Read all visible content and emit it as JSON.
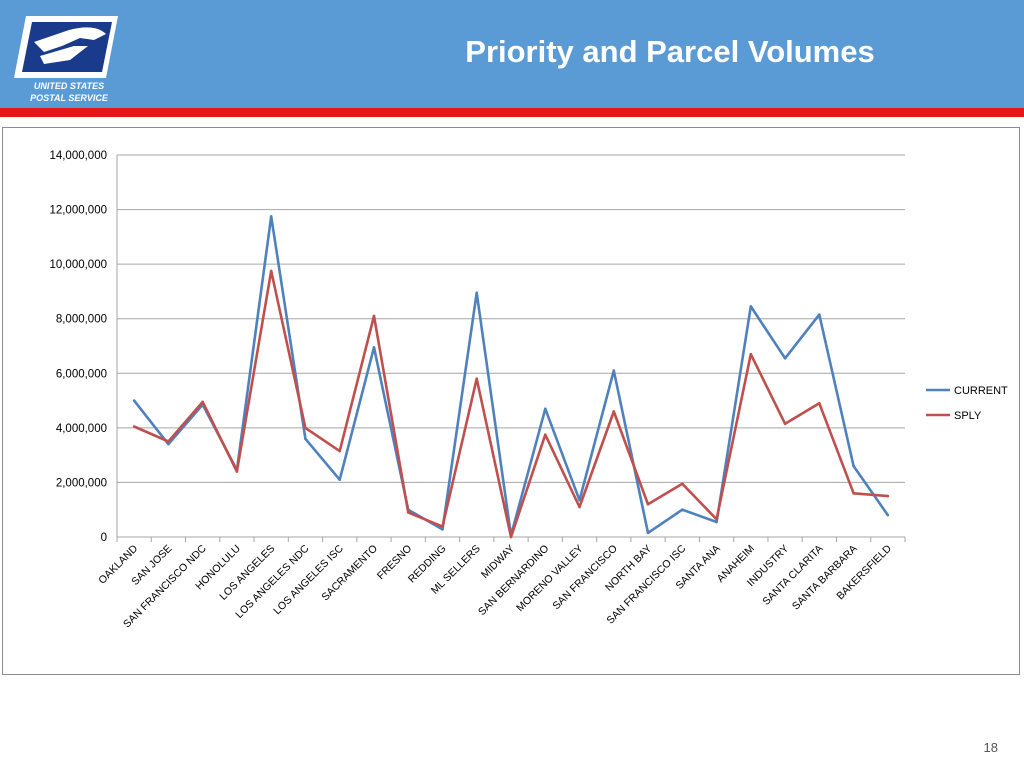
{
  "slide": {
    "title": "Priority and Parcel Volumes",
    "page_number": "18"
  },
  "logo": {
    "line1": "UNITED STATES",
    "line2": "POSTAL SERVICE"
  },
  "colors": {
    "header": "#5b9bd5",
    "red_bar": "#e8141c",
    "current": "#4f81bd",
    "sply": "#c0504d"
  },
  "chart_data": {
    "type": "line",
    "title": "",
    "xlabel": "",
    "ylabel": "",
    "ylim": [
      0,
      14000000
    ],
    "yticks": [
      0,
      2000000,
      4000000,
      6000000,
      8000000,
      10000000,
      12000000,
      14000000
    ],
    "ytick_labels": [
      "0",
      "2,000,000",
      "4,000,000",
      "6,000,000",
      "8,000,000",
      "10,000,000",
      "12,000,000",
      "14,000,000"
    ],
    "grid": "horizontal",
    "legend_position": "right",
    "categories": [
      "OAKLAND",
      "SAN JOSE",
      "SAN FRANCISCO NDC",
      "HONOLULU",
      "LOS ANGELES",
      "LOS ANGELES NDC",
      "LOS ANGELES ISC",
      "SACRAMENTO",
      "FRESNO",
      "REDDING",
      "ML SELLERS",
      "MIDWAY",
      "SAN BERNARDINO",
      "MORENO VALLEY",
      "SAN FRANCISCO",
      "NORTH BAY",
      "SAN FRANCISCO ISC",
      "SANTA ANA",
      "ANAHEIM",
      "INDUSTRY",
      "SANTA CLARITA",
      "SANTA BARBARA",
      "BAKERSFIELD"
    ],
    "series": [
      {
        "name": "CURRENT",
        "values": [
          5000000,
          3400000,
          4850000,
          2450000,
          11750000,
          3600000,
          2100000,
          6950000,
          1000000,
          280000,
          8950000,
          60000,
          4700000,
          1350000,
          6100000,
          150000,
          1000000,
          550000,
          8450000,
          6550000,
          8150000,
          2600000,
          800000
        ]
      },
      {
        "name": "SPLY",
        "values": [
          4050000,
          3500000,
          4950000,
          2400000,
          9750000,
          4000000,
          3150000,
          8100000,
          900000,
          380000,
          5800000,
          0,
          3750000,
          1100000,
          4600000,
          1200000,
          1950000,
          650000,
          6700000,
          4150000,
          4900000,
          1600000,
          1500000
        ]
      }
    ]
  }
}
